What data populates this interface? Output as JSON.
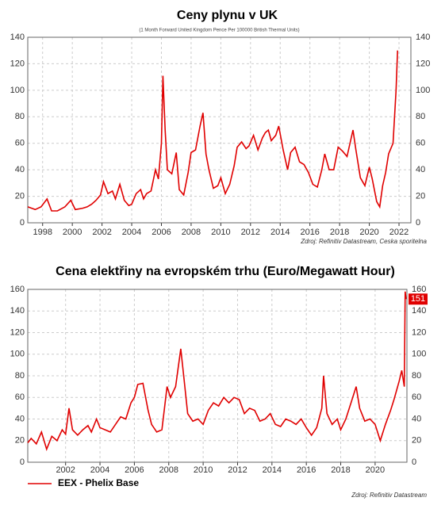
{
  "chart_data": [
    {
      "type": "line",
      "title": "Ceny plynu v UK",
      "subtitle": "(1 Month Forward United Kingdom Pence Per 100000 British Thermal Units)",
      "source": "Zdroj: Refinitiv Datastream, Ceska sporitelna",
      "x": [
        1997.0,
        1997.5,
        1997.9,
        1998.3,
        1998.6,
        1999.0,
        1999.5,
        1999.9,
        2000.2,
        2000.7,
        2001.0,
        2001.3,
        2001.6,
        2001.9,
        2002.1,
        2002.4,
        2002.7,
        2002.9,
        2003.2,
        2003.5,
        2003.8,
        2004.0,
        2004.3,
        2004.6,
        2004.8,
        2005.0,
        2005.3,
        2005.6,
        2005.8,
        2006.0,
        2006.1,
        2006.25,
        2006.4,
        2006.7,
        2007.0,
        2007.2,
        2007.5,
        2007.8,
        2008.0,
        2008.3,
        2008.6,
        2008.8,
        2009.0,
        2009.2,
        2009.5,
        2009.8,
        2010.0,
        2010.3,
        2010.6,
        2010.9,
        2011.1,
        2011.4,
        2011.7,
        2011.9,
        2012.2,
        2012.5,
        2012.8,
        2013.0,
        2013.2,
        2013.4,
        2013.7,
        2013.9,
        2014.2,
        2014.5,
        2014.7,
        2015.0,
        2015.3,
        2015.6,
        2015.9,
        2016.2,
        2016.5,
        2016.8,
        2017.0,
        2017.3,
        2017.6,
        2017.9,
        2018.2,
        2018.5,
        2018.9,
        2019.1,
        2019.4,
        2019.7,
        2020.0,
        2020.2,
        2020.5,
        2020.7,
        2020.9,
        2021.1,
        2021.3,
        2021.6,
        2021.8,
        2021.9
      ],
      "series": [
        {
          "color": "#e00000",
          "values": [
            12,
            10,
            12,
            18,
            9,
            9,
            12,
            17,
            10,
            11,
            12,
            14,
            17,
            21,
            31,
            22,
            24,
            18,
            29,
            17,
            13,
            14,
            22,
            25,
            18,
            22,
            24,
            40,
            33,
            60,
            111,
            70,
            40,
            37,
            53,
            25,
            21,
            38,
            53,
            55,
            73,
            83,
            52,
            40,
            26,
            28,
            34,
            22,
            29,
            43,
            57,
            61,
            56,
            58,
            66,
            55,
            64,
            68,
            70,
            62,
            66,
            73,
            55,
            40,
            53,
            57,
            46,
            44,
            38,
            29,
            27,
            40,
            52,
            40,
            40,
            57,
            54,
            50,
            70,
            55,
            34,
            28,
            42,
            33,
            16,
            12,
            28,
            38,
            52,
            60,
            100,
            130
          ]
        }
      ],
      "xlim": [
        1997.0,
        2022.8
      ],
      "ylim": [
        0,
        140
      ],
      "xticks": [
        1998,
        2000,
        2002,
        2004,
        2006,
        2008,
        2010,
        2012,
        2014,
        2016,
        2018,
        2020,
        2022
      ],
      "yticks": [
        0,
        20,
        40,
        60,
        80,
        100,
        120,
        140
      ],
      "grid": true,
      "right_axis": true
    },
    {
      "type": "line",
      "title": "Cena elektřiny na evropském trhu (Euro/Megawatt Hour)",
      "source": "Zdroj: Refinitiv Datastream",
      "x": [
        1999.8,
        2000.0,
        2000.3,
        2000.6,
        2000.9,
        2001.2,
        2001.5,
        2001.8,
        2002.0,
        2002.2,
        2002.4,
        2002.7,
        2003.0,
        2003.3,
        2003.5,
        2003.8,
        2004.0,
        2004.3,
        2004.6,
        2004.9,
        2005.2,
        2005.5,
        2005.8,
        2006.0,
        2006.2,
        2006.5,
        2006.8,
        2007.0,
        2007.3,
        2007.6,
        2007.9,
        2008.1,
        2008.4,
        2008.7,
        2008.9,
        2009.1,
        2009.4,
        2009.7,
        2010.0,
        2010.3,
        2010.6,
        2010.9,
        2011.2,
        2011.5,
        2011.8,
        2012.1,
        2012.4,
        2012.7,
        2013.0,
        2013.3,
        2013.6,
        2013.9,
        2014.2,
        2014.5,
        2014.8,
        2015.1,
        2015.4,
        2015.7,
        2016.0,
        2016.3,
        2016.6,
        2016.9,
        2017.0,
        2017.2,
        2017.5,
        2017.8,
        2018.0,
        2018.3,
        2018.6,
        2018.9,
        2019.1,
        2019.4,
        2019.7,
        2020.0,
        2020.3,
        2020.6,
        2020.9,
        2021.1,
        2021.4,
        2021.55,
        2021.7,
        2021.75,
        2021.8
      ],
      "series": [
        {
          "name": "EEX - Phelix Base",
          "color": "#e00000",
          "values": [
            18,
            22,
            17,
            28,
            12,
            24,
            20,
            30,
            26,
            50,
            30,
            25,
            30,
            34,
            28,
            40,
            32,
            30,
            28,
            35,
            42,
            40,
            55,
            60,
            72,
            73,
            48,
            35,
            28,
            30,
            70,
            60,
            70,
            105,
            75,
            45,
            38,
            40,
            35,
            48,
            55,
            52,
            60,
            55,
            60,
            58,
            45,
            50,
            48,
            38,
            40,
            45,
            35,
            33,
            40,
            38,
            35,
            40,
            32,
            25,
            32,
            50,
            80,
            45,
            35,
            40,
            30,
            40,
            55,
            70,
            50,
            38,
            40,
            35,
            20,
            35,
            48,
            58,
            75,
            85,
            70,
            158,
            151
          ]
        }
      ],
      "xlim": [
        1999.8,
        2021.85
      ],
      "ylim": [
        0,
        160
      ],
      "xticks": [
        2002,
        2004,
        2006,
        2008,
        2010,
        2012,
        2014,
        2016,
        2018,
        2020
      ],
      "yticks": [
        0,
        20,
        40,
        60,
        80,
        100,
        120,
        140,
        160
      ],
      "grid": true,
      "right_axis": true,
      "label_last": true,
      "legend": "bottom-left"
    }
  ]
}
